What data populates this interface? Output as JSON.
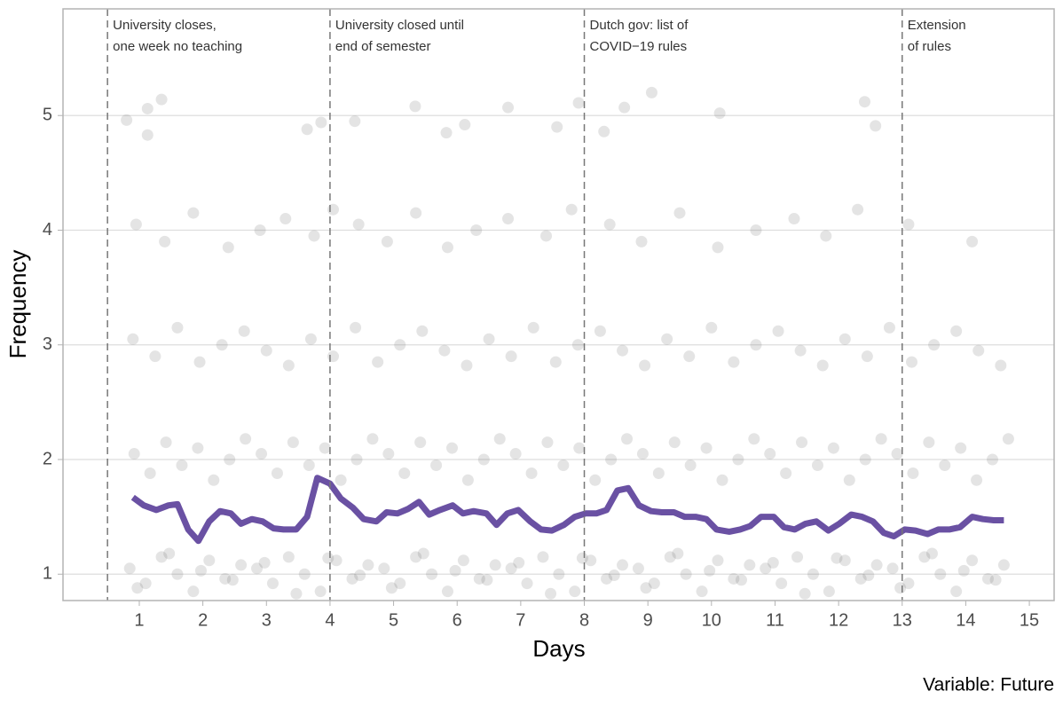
{
  "chart_data": {
    "type": "scatter",
    "x_label": "Days",
    "y_label": "Frequency",
    "caption": "Variable: Future",
    "xlim": [
      -0.2,
      15.39
    ],
    "ylim": [
      0.77,
      5.93
    ],
    "xticks": [
      1,
      2,
      3,
      4,
      5,
      6,
      7,
      8,
      9,
      10,
      11,
      12,
      13,
      14,
      15
    ],
    "yticks": [
      1,
      2,
      3,
      4,
      5
    ],
    "grid": true,
    "annotations": [
      {
        "x": 0.5,
        "lines": [
          "University closes,",
          "one week no teaching"
        ]
      },
      {
        "x": 4,
        "lines": [
          "University closed until",
          "end of semester"
        ]
      },
      {
        "x": 8,
        "lines": [
          "Dutch gov: list of",
          "COVID−19 rules"
        ]
      },
      {
        "x": 13,
        "lines": [
          "Extension",
          "of rules"
        ]
      }
    ],
    "points": {
      "color": "#555555",
      "x": [
        0.85,
        1.1,
        1.35,
        1.6,
        1.85,
        2.1,
        2.35,
        2.6,
        2.85,
        3.1,
        3.35,
        3.6,
        3.85,
        4.1,
        4.35,
        4.6,
        4.85,
        5.1,
        5.35,
        5.6,
        5.85,
        6.1,
        6.35,
        6.6,
        6.85,
        7.1,
        7.35,
        7.6,
        7.85,
        8.1,
        8.35,
        8.6,
        8.85,
        9.1,
        9.35,
        9.6,
        9.85,
        10.1,
        10.35,
        10.6,
        10.85,
        11.1,
        11.35,
        11.6,
        11.85,
        12.1,
        12.35,
        12.6,
        12.85,
        13.1,
        13.35,
        13.6,
        13.85,
        14.1,
        14.35,
        14.6,
        0.97,
        1.47,
        1.97,
        2.47,
        2.97,
        3.47,
        3.97,
        4.47,
        4.97,
        5.47,
        5.97,
        6.47,
        6.97,
        7.47,
        7.97,
        8.47,
        8.97,
        9.47,
        9.97,
        10.47,
        10.97,
        11.47,
        11.97,
        12.47,
        12.97,
        13.47,
        13.97,
        14.47,
        0.92,
        1.17,
        1.42,
        1.67,
        1.92,
        2.17,
        2.42,
        2.67,
        2.92,
        3.17,
        3.42,
        3.67,
        3.92,
        4.17,
        4.42,
        4.67,
        4.92,
        5.17,
        5.42,
        5.67,
        5.92,
        6.17,
        6.42,
        6.67,
        6.92,
        7.17,
        7.42,
        7.67,
        7.92,
        8.17,
        8.42,
        8.67,
        8.92,
        9.17,
        9.42,
        9.67,
        9.92,
        10.17,
        10.42,
        10.67,
        10.92,
        11.17,
        11.42,
        11.67,
        11.92,
        12.17,
        12.42,
        12.67,
        12.92,
        13.17,
        13.42,
        13.67,
        13.92,
        14.17,
        14.42,
        14.67,
        0.9,
        1.25,
        1.6,
        1.95,
        2.3,
        2.65,
        3.0,
        3.35,
        3.7,
        4.05,
        4.4,
        4.75,
        5.1,
        5.45,
        5.8,
        6.15,
        6.5,
        6.85,
        7.2,
        7.55,
        7.9,
        8.25,
        8.6,
        8.95,
        9.3,
        9.65,
        10.0,
        10.35,
        10.7,
        11.05,
        11.4,
        11.75,
        12.1,
        12.45,
        12.8,
        13.15,
        13.5,
        13.85,
        14.2,
        14.55,
        0.95,
        1.4,
        1.85,
        2.4,
        2.9,
        3.3,
        3.75,
        4.05,
        4.45,
        4.9,
        5.35,
        5.85,
        6.3,
        6.8,
        7.4,
        7.8,
        8.4,
        8.9,
        9.5,
        10.1,
        10.7,
        11.3,
        11.8,
        12.3,
        13.1,
        14.1,
        0.8,
        1.13,
        1.13,
        1.35,
        3.64,
        3.86,
        4.39,
        5.34,
        5.83,
        6.12,
        6.8,
        7.57,
        7.91,
        8.31,
        8.63,
        9.06,
        10.13,
        12.41,
        12.58
      ],
      "y": [
        1.05,
        0.92,
        1.15,
        1.0,
        0.85,
        1.12,
        0.96,
        1.08,
        1.05,
        0.92,
        1.15,
        1.0,
        0.85,
        1.12,
        0.96,
        1.08,
        1.05,
        0.92,
        1.15,
        1.0,
        0.85,
        1.12,
        0.96,
        1.08,
        1.05,
        0.92,
        1.15,
        1.0,
        0.85,
        1.12,
        0.96,
        1.08,
        1.05,
        0.92,
        1.15,
        1.0,
        0.85,
        1.12,
        0.96,
        1.08,
        1.05,
        0.92,
        1.15,
        1.0,
        0.85,
        1.12,
        0.96,
        1.08,
        1.05,
        0.92,
        1.15,
        1.0,
        0.85,
        1.12,
        0.96,
        1.08,
        0.88,
        1.18,
        1.03,
        0.95,
        1.1,
        0.83,
        1.14,
        0.99,
        0.88,
        1.18,
        1.03,
        0.95,
        1.1,
        0.83,
        1.14,
        0.99,
        0.88,
        1.18,
        1.03,
        0.95,
        1.1,
        0.83,
        1.14,
        0.99,
        0.88,
        1.18,
        1.03,
        0.95,
        2.05,
        1.88,
        2.15,
        1.95,
        2.1,
        1.82,
        2.0,
        2.18,
        2.05,
        1.88,
        2.15,
        1.95,
        2.1,
        1.82,
        2.0,
        2.18,
        2.05,
        1.88,
        2.15,
        1.95,
        2.1,
        1.82,
        2.0,
        2.18,
        2.05,
        1.88,
        2.15,
        1.95,
        2.1,
        1.82,
        2.0,
        2.18,
        2.05,
        1.88,
        2.15,
        1.95,
        2.1,
        1.82,
        2.0,
        2.18,
        2.05,
        1.88,
        2.15,
        1.95,
        2.1,
        1.82,
        2.0,
        2.18,
        2.05,
        1.88,
        2.15,
        1.95,
        2.1,
        1.82,
        2.0,
        2.18,
        3.05,
        2.9,
        3.15,
        2.85,
        3.0,
        3.12,
        2.95,
        2.82,
        3.05,
        2.9,
        3.15,
        2.85,
        3.0,
        3.12,
        2.95,
        2.82,
        3.05,
        2.9,
        3.15,
        2.85,
        3.0,
        3.12,
        2.95,
        2.82,
        3.05,
        2.9,
        3.15,
        2.85,
        3.0,
        3.12,
        2.95,
        2.82,
        3.05,
        2.9,
        3.15,
        2.85,
        3.0,
        3.12,
        2.95,
        2.82,
        4.05,
        3.9,
        4.15,
        3.85,
        4.0,
        4.1,
        3.95,
        4.18,
        4.05,
        3.9,
        4.15,
        3.85,
        4.0,
        4.1,
        3.95,
        4.18,
        4.05,
        3.9,
        4.15,
        3.85,
        4.0,
        4.1,
        3.95,
        4.18,
        4.05,
        3.9,
        4.96,
        5.06,
        4.83,
        5.14,
        4.88,
        4.94,
        4.95,
        5.08,
        4.85,
        4.92,
        5.07,
        4.9,
        5.11,
        4.86,
        5.07,
        5.2,
        5.02,
        5.12,
        4.91
      ]
    },
    "line": {
      "color": "#6a51a3",
      "x": [
        0.9,
        1.07,
        1.27,
        1.46,
        1.6,
        1.77,
        1.93,
        2.1,
        2.27,
        2.44,
        2.6,
        2.77,
        2.94,
        3.11,
        3.27,
        3.47,
        3.64,
        3.8,
        4.0,
        4.17,
        4.36,
        4.53,
        4.73,
        4.89,
        5.06,
        5.23,
        5.4,
        5.56,
        5.73,
        5.93,
        6.09,
        6.26,
        6.46,
        6.62,
        6.79,
        6.96,
        7.15,
        7.32,
        7.49,
        7.68,
        7.85,
        8.02,
        8.19,
        8.35,
        8.52,
        8.69,
        8.86,
        9.05,
        9.22,
        9.41,
        9.58,
        9.75,
        9.92,
        10.08,
        10.28,
        10.45,
        10.61,
        10.78,
        10.98,
        11.14,
        11.31,
        11.48,
        11.65,
        11.84,
        12.01,
        12.2,
        12.37,
        12.54,
        12.71,
        12.87,
        13.04,
        13.21,
        13.4,
        13.57,
        13.74,
        13.91,
        14.1,
        14.27,
        14.44,
        14.6
      ],
      "y": [
        1.67,
        1.6,
        1.56,
        1.6,
        1.61,
        1.39,
        1.29,
        1.46,
        1.55,
        1.53,
        1.44,
        1.48,
        1.46,
        1.4,
        1.39,
        1.39,
        1.5,
        1.84,
        1.79,
        1.66,
        1.58,
        1.48,
        1.46,
        1.54,
        1.53,
        1.57,
        1.63,
        1.52,
        1.56,
        1.6,
        1.53,
        1.55,
        1.53,
        1.43,
        1.53,
        1.56,
        1.46,
        1.39,
        1.38,
        1.43,
        1.5,
        1.53,
        1.53,
        1.56,
        1.73,
        1.75,
        1.6,
        1.55,
        1.54,
        1.54,
        1.5,
        1.5,
        1.48,
        1.39,
        1.37,
        1.39,
        1.42,
        1.5,
        1.5,
        1.41,
        1.39,
        1.44,
        1.46,
        1.38,
        1.44,
        1.52,
        1.5,
        1.46,
        1.36,
        1.33,
        1.39,
        1.38,
        1.35,
        1.39,
        1.39,
        1.41,
        1.5,
        1.48,
        1.47,
        1.47
      ]
    }
  }
}
